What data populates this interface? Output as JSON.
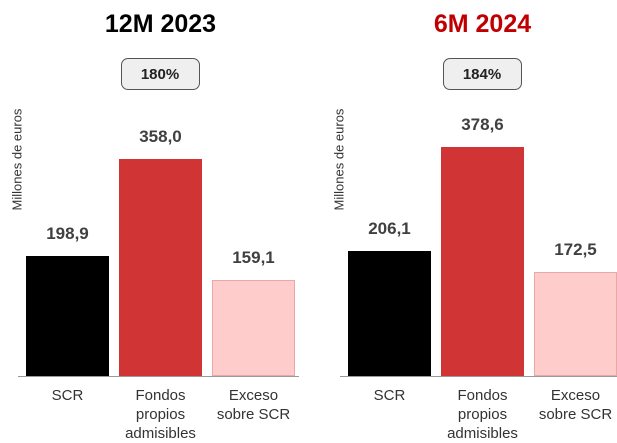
{
  "chart_data": [
    {
      "type": "bar",
      "title": "12M 2023",
      "title_color": "#000000",
      "annotation": "180%",
      "y_label": "Millones de euros",
      "categories": [
        "SCR",
        "Fondos propios admisibles",
        "Exceso sobre SCR"
      ],
      "values": [
        198.9,
        358.0,
        159.1
      ],
      "value_labels": [
        "198,9",
        "358,0",
        "159,1"
      ],
      "colors": [
        "#000000",
        "#d03434",
        "#ffcccc"
      ],
      "ylim": [
        0,
        400
      ]
    },
    {
      "type": "bar",
      "title": "6M 2024",
      "title_color": "#c00000",
      "annotation": "184%",
      "y_label": "Millones de euros",
      "categories": [
        "SCR",
        "Fondos propios admisibles",
        "Exceso sobre SCR"
      ],
      "values": [
        206.1,
        378.6,
        172.5
      ],
      "value_labels": [
        "206,1",
        "378,6",
        "172,5"
      ],
      "colors": [
        "#000000",
        "#d03434",
        "#ffcccc"
      ],
      "ylim": [
        0,
        400
      ]
    }
  ]
}
